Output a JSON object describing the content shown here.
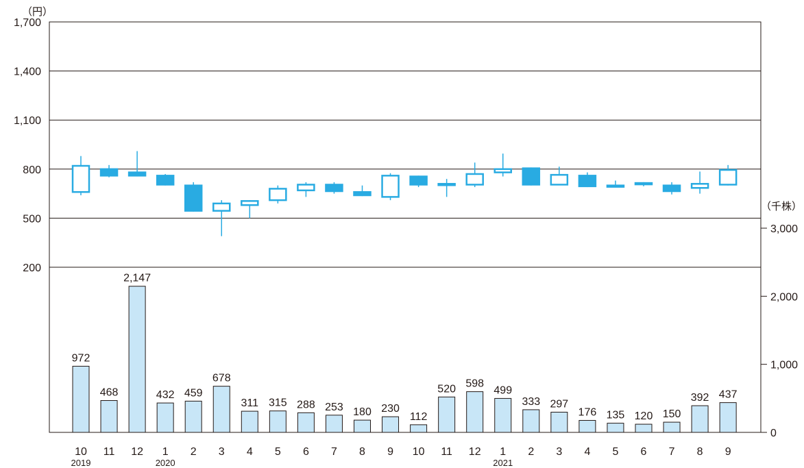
{
  "chart_data": {
    "type": "candlestick+bar",
    "left_unit": "（円）",
    "right_unit": "（千株）",
    "price_axis": {
      "ticks": [
        "1,700",
        "1,400",
        "1,100",
        "800",
        "500",
        "200"
      ],
      "tick_values": [
        1700,
        1400,
        1100,
        800,
        500,
        200
      ],
      "ylim": [
        200,
        1700
      ]
    },
    "volume_axis": {
      "ticks": [
        "3,000",
        "2,000",
        "1,000",
        "0"
      ],
      "tick_values": [
        3000,
        2000,
        1000,
        0
      ],
      "ylim": [
        0,
        3000
      ]
    },
    "months": [
      "10",
      "11",
      "12",
      "1",
      "2",
      "3",
      "4",
      "5",
      "6",
      "7",
      "8",
      "9",
      "10",
      "11",
      "12",
      "1",
      "2",
      "3",
      "4",
      "5",
      "6",
      "7",
      "8",
      "9"
    ],
    "year_labels": [
      {
        "index": 0,
        "text": "2019"
      },
      {
        "index": 3,
        "text": "2020"
      },
      {
        "index": 15,
        "text": "2021"
      }
    ],
    "candles": [
      {
        "open": 660,
        "close": 820,
        "high": 880,
        "low": 640
      },
      {
        "open": 800,
        "close": 760,
        "high": 825,
        "low": 750
      },
      {
        "open": 780,
        "close": 760,
        "high": 910,
        "low": 755
      },
      {
        "open": 760,
        "close": 705,
        "high": 770,
        "low": 700
      },
      {
        "open": 700,
        "close": 545,
        "high": 720,
        "low": 540
      },
      {
        "open": 545,
        "close": 590,
        "high": 610,
        "low": 390
      },
      {
        "open": 580,
        "close": 605,
        "high": 610,
        "low": 500
      },
      {
        "open": 610,
        "close": 680,
        "high": 700,
        "low": 590
      },
      {
        "open": 670,
        "close": 705,
        "high": 720,
        "low": 630
      },
      {
        "open": 705,
        "close": 665,
        "high": 720,
        "low": 650
      },
      {
        "open": 660,
        "close": 640,
        "high": 700,
        "low": 635
      },
      {
        "open": 630,
        "close": 760,
        "high": 775,
        "low": 610
      },
      {
        "open": 755,
        "close": 705,
        "high": 760,
        "low": 690
      },
      {
        "open": 705,
        "close": 710,
        "high": 740,
        "low": 630
      },
      {
        "open": 705,
        "close": 770,
        "high": 840,
        "low": 690
      },
      {
        "open": 780,
        "close": 800,
        "high": 895,
        "low": 755
      },
      {
        "open": 805,
        "close": 705,
        "high": 810,
        "low": 700
      },
      {
        "open": 705,
        "close": 765,
        "high": 815,
        "low": 705
      },
      {
        "open": 760,
        "close": 695,
        "high": 780,
        "low": 690
      },
      {
        "open": 700,
        "close": 695,
        "high": 730,
        "low": 690
      },
      {
        "open": 710,
        "close": 715,
        "high": 720,
        "low": 695
      },
      {
        "open": 700,
        "close": 665,
        "high": 720,
        "low": 645
      },
      {
        "open": 685,
        "close": 710,
        "high": 785,
        "low": 650
      },
      {
        "open": 705,
        "close": 795,
        "high": 825,
        "low": 700
      }
    ],
    "volume_values": [
      972,
      468,
      2147,
      432,
      459,
      678,
      311,
      315,
      288,
      253,
      180,
      230,
      112,
      520,
      598,
      499,
      333,
      297,
      176,
      135,
      120,
      150,
      392,
      437
    ],
    "volume_labels": [
      "972",
      "468",
      "2,147",
      "432",
      "459",
      "678",
      "311",
      "315",
      "288",
      "253",
      "180",
      "230",
      "112",
      "520",
      "598",
      "499",
      "333",
      "297",
      "176",
      "135",
      "120",
      "150",
      "392",
      "437"
    ],
    "colors": {
      "candle": "#29abe2",
      "bar_fill": "#c8e6f7",
      "bar_stroke": "#231815",
      "grid": "#231815"
    }
  }
}
